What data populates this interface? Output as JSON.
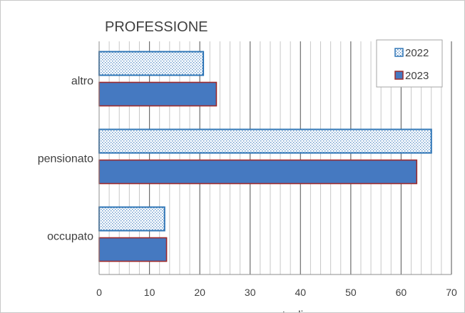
{
  "chart_data": {
    "type": "bar",
    "orientation": "horizontal",
    "title": "PROFESSIONE",
    "xlabel": "percentuali",
    "ylabel": "",
    "categories": [
      "altro",
      "pensionato",
      "occupato"
    ],
    "series": [
      {
        "name": "2022",
        "values": [
          20.7,
          66.0,
          13.0
        ],
        "fill": "dotted",
        "color": "#2e75b6"
      },
      {
        "name": "2023",
        "values": [
          23.3,
          63.1,
          13.4
        ],
        "fill": "solid",
        "color": "#4579c1",
        "border": "#9e2a2b"
      }
    ],
    "xlim": [
      0,
      70
    ],
    "xticks": [
      "0",
      "10",
      "20",
      "30",
      "40",
      "50",
      "60",
      "70"
    ],
    "grid": true,
    "legend_position": "top-right"
  }
}
